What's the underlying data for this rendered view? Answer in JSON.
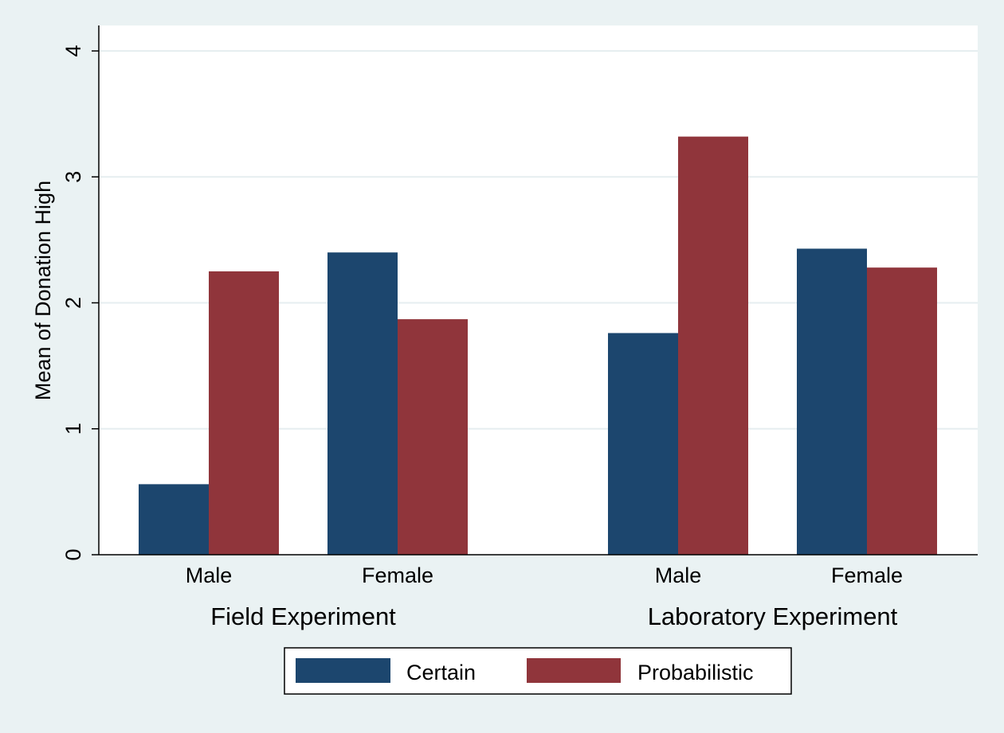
{
  "chart_data": {
    "type": "bar",
    "title": "",
    "xlabel": "",
    "ylabel": "Mean of Donation High",
    "ylim": [
      0,
      4
    ],
    "yticks": [
      0,
      1,
      2,
      3,
      4
    ],
    "grid": true,
    "legend_position": "bottom",
    "groups": [
      {
        "label": "Field Experiment",
        "categories": [
          "Male",
          "Female"
        ],
        "series": [
          {
            "name": "Certain",
            "values": [
              0.56,
              2.4
            ]
          },
          {
            "name": "Probabilistic",
            "values": [
              2.25,
              1.87
            ]
          }
        ]
      },
      {
        "label": "Laboratory Experiment",
        "categories": [
          "Male",
          "Female"
        ],
        "series": [
          {
            "name": "Certain",
            "values": [
              1.76,
              2.43
            ]
          },
          {
            "name": "Probabilistic",
            "values": [
              3.32,
              2.28
            ]
          }
        ]
      }
    ],
    "legend": [
      {
        "name": "Certain",
        "color": "#1c466e"
      },
      {
        "name": "Probabilistic",
        "color": "#90353b"
      }
    ],
    "colors": {
      "background": "#eaf2f3",
      "plot_background": "#ffffff",
      "grid": "#e6eef0",
      "axis": "#000000"
    }
  }
}
